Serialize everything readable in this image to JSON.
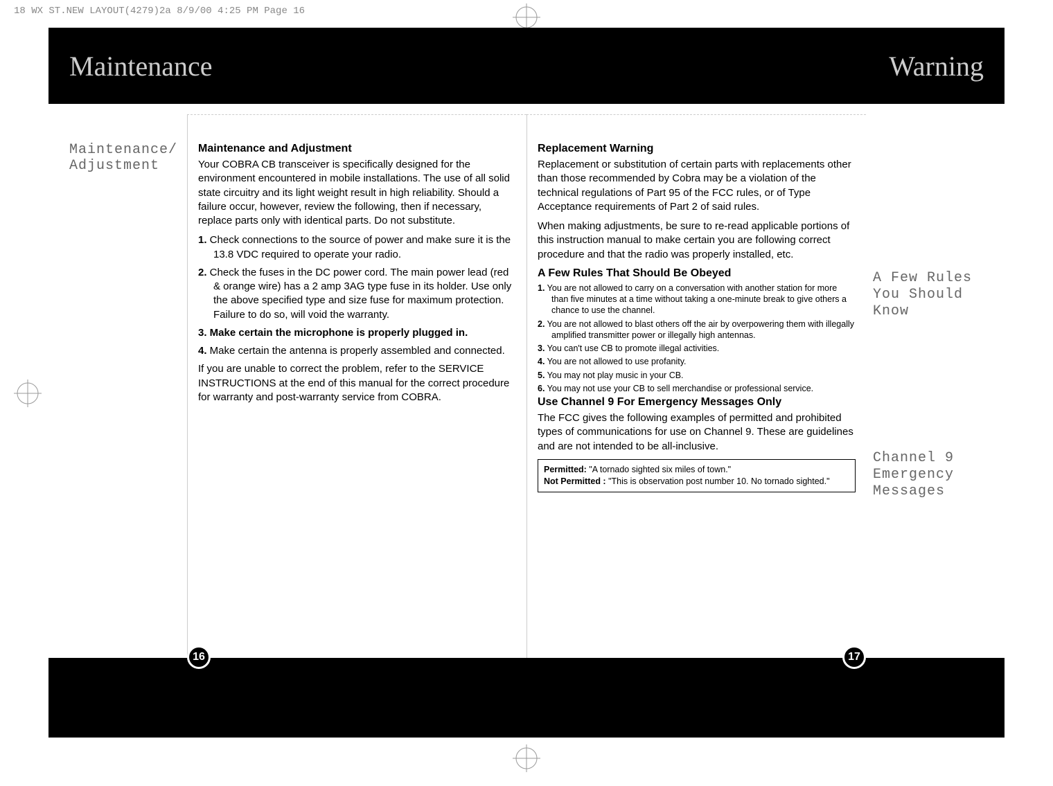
{
  "print_header": "18 WX ST.NEW LAYOUT(4279)2a  8/9/00  4:25 PM  Page 16",
  "header": {
    "left": "Maintenance",
    "right": "Warning"
  },
  "left_sidebar": {
    "title_l1": "Maintenance/",
    "title_l2": "Adjustment"
  },
  "col1": {
    "h1": "Maintenance and Adjustment",
    "p1": "Your COBRA CB transceiver is specifically designed for the environment encountered in mobile installations. The use of all solid state circuitry and its light weight result in high reliability. Should a failure occur, however, review the following, then if necessary, replace parts only with identical parts. Do not substitute.",
    "items": [
      {
        "n": "1.",
        "t": "Check connections to the source of power and make sure it is the 13.8 VDC required to operate your radio."
      },
      {
        "n": "2.",
        "t": "Check the fuses in the DC power cord. The main power lead (red & orange wire) has a 2 amp 3AG type fuse in its holder. Use only the above specified type and size fuse for maximum protection. Failure to do so, will void the warranty."
      },
      {
        "n": "3.",
        "t": "Make certain the microphone is properly plugged in.",
        "bold": true
      },
      {
        "n": "4.",
        "t": "Make certain the antenna is properly assembled and connected."
      }
    ],
    "p2": "If you are unable to correct the problem, refer to the  SERVICE INSTRUCTIONS at the end of this manual for the correct procedure for warranty and post-warranty service from COBRA."
  },
  "col2": {
    "h1": "Replacement Warning",
    "p1": "Replacement or substitution of certain parts with replacements other than those recommended by Cobra may be a violation of the technical regulations of Part 95 of the FCC rules, or of Type Acceptance requirements of Part 2 of said rules.",
    "p2": "When making adjustments, be sure to re-read applicable portions of this instruction manual to make certain you are following correct procedure and that the radio was properly installed, etc.",
    "h2": "A Few Rules That Should Be Obeyed",
    "rules": [
      {
        "n": "1.",
        "t": "You are not allowed to carry on a conversation with another station for more than five minutes at a time without taking a one-minute break to give others a chance to use the channel."
      },
      {
        "n": "2.",
        "t": "You are not allowed to blast others off the air by overpowering them with illegally amplified transmitter power or illegally high antennas."
      },
      {
        "n": "3.",
        "t": "You can't use CB to promote illegal activities."
      },
      {
        "n": "4.",
        "t": "You are not allowed to use profanity."
      },
      {
        "n": "5.",
        "t": "You may not play music in your CB."
      },
      {
        "n": "6.",
        "t": "You may not use your CB to sell merchandise or professional service."
      }
    ],
    "h3": "Use Channel 9 For Emergency Messages Only",
    "p3": "The FCC gives the following examples of permitted and prohibited types of communications for use on Channel 9. These are guidelines and are not intended to be all-inclusive.",
    "box": {
      "permitted_label": "Permitted:",
      "permitted_text": " \"A tornado sighted six miles of town.\"",
      "not_label": "Not Permitted :",
      "not_text": " \"This is observation post number 10. No tornado sighted.\""
    }
  },
  "right_sidebar": {
    "label1": "A Few Rules You Should Know",
    "label2": "Channel 9 Emergency Messages"
  },
  "page_left": "16",
  "page_right": "17"
}
